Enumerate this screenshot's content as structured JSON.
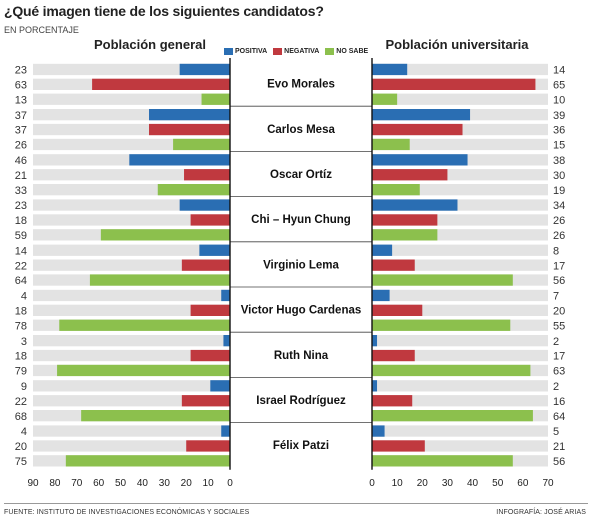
{
  "title": "¿Qué imagen tiene de los siguientes candidatos?",
  "subtitle": "EN PORCENTAJE",
  "footer": {
    "source": "FUENTE: INSTITUTO DE INVESTIGACIONES ECONÓMICAS Y SOCIALES",
    "credit": "INFOGRAFÍA: JOSÉ ARIAS"
  },
  "legend": [
    {
      "label": "POSITIVA",
      "color": "#2a6eb3"
    },
    {
      "label": "NEGATIVA",
      "color": "#c0393f"
    },
    {
      "label": "NO SABE",
      "color": "#8cc04d"
    }
  ],
  "chart_data": [
    {
      "type": "bar",
      "title": "Población general",
      "orientation": "horizontal-left",
      "xlim": [
        0,
        90
      ],
      "ticks": [
        90,
        80,
        70,
        60,
        50,
        40,
        30,
        20,
        10,
        0
      ],
      "categories": [
        "Evo Morales",
        "Carlos Mesa",
        "Oscar Ortíz",
        "Chi – Hyun Chung",
        "Virginio Lema",
        "Victor Hugo Cardenas",
        "Ruth Nina",
        "Israel Rodríguez",
        "Félix Patzi"
      ],
      "series": [
        {
          "name": "POSITIVA",
          "color": "#2a6eb3",
          "values": [
            23,
            37,
            46,
            23,
            14,
            4,
            3,
            9,
            4
          ]
        },
        {
          "name": "NEGATIVA",
          "color": "#c0393f",
          "values": [
            63,
            37,
            21,
            18,
            22,
            18,
            18,
            22,
            20
          ]
        },
        {
          "name": "NO SABE",
          "color": "#8cc04d",
          "values": [
            13,
            26,
            33,
            59,
            64,
            78,
            79,
            68,
            75
          ]
        }
      ]
    },
    {
      "type": "bar",
      "title": "Población universitaria",
      "orientation": "horizontal-right",
      "xlim": [
        0,
        70
      ],
      "ticks": [
        0,
        10,
        20,
        30,
        40,
        50,
        60,
        70
      ],
      "categories": [
        "Evo Morales",
        "Carlos Mesa",
        "Oscar Ortíz",
        "Chi – Hyun Chung",
        "Virginio Lema",
        "Victor Hugo Cardenas",
        "Ruth Nina",
        "Israel Rodríguez",
        "Félix Patzi"
      ],
      "series": [
        {
          "name": "POSITIVA",
          "color": "#2a6eb3",
          "values": [
            14,
            39,
            38,
            34,
            8,
            7,
            2,
            2,
            5
          ]
        },
        {
          "name": "NEGATIVA",
          "color": "#c0393f",
          "values": [
            65,
            36,
            30,
            26,
            17,
            20,
            17,
            16,
            21
          ]
        },
        {
          "name": "NO SABE",
          "color": "#8cc04d",
          "values": [
            10,
            15,
            19,
            26,
            56,
            55,
            63,
            64,
            56
          ]
        }
      ]
    }
  ]
}
